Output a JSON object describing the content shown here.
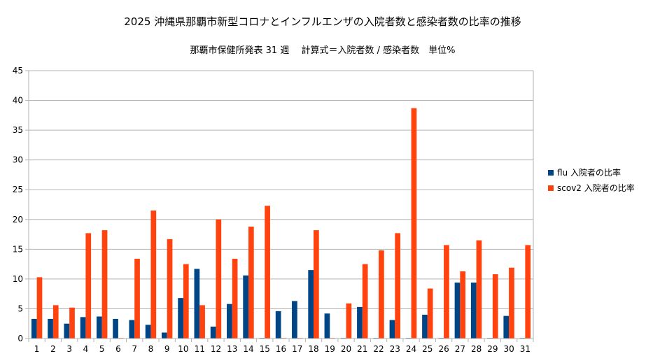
{
  "colors": {
    "flu": "#004586",
    "scov2": "#ff420e",
    "grid": "#b3b3b3",
    "axis": "#b3b3b3"
  },
  "chart_data": {
    "type": "bar",
    "title": "2025 沖縄県那覇市新型コロナとインフルエンザの入院者数と感染者数の比率の推移",
    "subtitle": "那覇市保健所発表 31 週　 計算式＝入院者数 / 感染者数　単位%",
    "xlabel": "",
    "ylabel": "",
    "ylim": [
      0,
      45
    ],
    "yticks": [
      0,
      5,
      10,
      15,
      20,
      25,
      30,
      35,
      40,
      45
    ],
    "grid": true,
    "legend_position": "right",
    "categories": [
      "1",
      "2",
      "3",
      "4",
      "5",
      "6",
      "7",
      "8",
      "9",
      "10",
      "11",
      "12",
      "13",
      "14",
      "15",
      "16",
      "17",
      "18",
      "19",
      "20",
      "21",
      "22",
      "23",
      "24",
      "25",
      "26",
      "27",
      "28",
      "29",
      "30",
      "31"
    ],
    "series": [
      {
        "name": "flu 入院者の比率",
        "color_key": "flu",
        "values": [
          3.3,
          3.3,
          2.5,
          3.6,
          3.7,
          3.3,
          3.1,
          2.3,
          1.0,
          6.8,
          11.7,
          2.0,
          5.8,
          10.6,
          0.1,
          4.6,
          6.3,
          11.5,
          4.2,
          0.1,
          5.3,
          0.1,
          3.1,
          0.1,
          4.0,
          0.1,
          9.4,
          9.4,
          0.1,
          3.8,
          0.1
        ]
      },
      {
        "name": "scov2 入院者の比率",
        "color_key": "scov2",
        "values": [
          10.3,
          5.6,
          5.2,
          17.7,
          18.2,
          0.1,
          13.4,
          21.5,
          16.7,
          12.5,
          5.6,
          20.0,
          13.4,
          18.8,
          22.3,
          0.1,
          0.1,
          18.2,
          0.1,
          5.9,
          12.5,
          14.8,
          17.7,
          38.7,
          8.4,
          15.7,
          11.3,
          16.5,
          10.8,
          11.9,
          15.7
        ]
      }
    ]
  }
}
